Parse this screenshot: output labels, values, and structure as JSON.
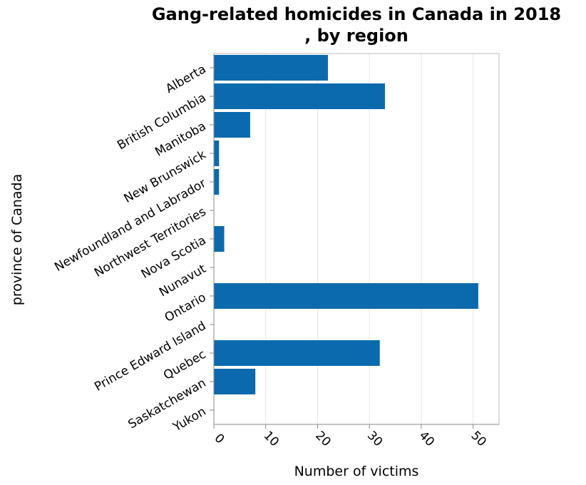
{
  "chart_data": {
    "type": "bar",
    "orientation": "horizontal",
    "title_lines": [
      "Gang-related homicides in Canada in 2018",
      ", by region"
    ],
    "xlabel": "Number of victims",
    "ylabel": "province of Canada",
    "xlim": [
      0,
      55
    ],
    "x_ticks": [
      "0",
      "10",
      "20",
      "30",
      "40",
      "50"
    ],
    "grid": true,
    "bar_color": "#0b6aad",
    "categories": [
      "Alberta",
      "British Columbia",
      "Manitoba",
      "New Brunswick",
      "Newfoundland and Labrador",
      "Northwest Territories",
      "Nova Scotia",
      "Nunavut",
      "Ontario",
      "Prince Edward Island",
      "Quebec",
      "Saskatchewan",
      "Yukon"
    ],
    "values": [
      22,
      33,
      7,
      1,
      1,
      0,
      2,
      0,
      51,
      0,
      32,
      8,
      0
    ]
  }
}
